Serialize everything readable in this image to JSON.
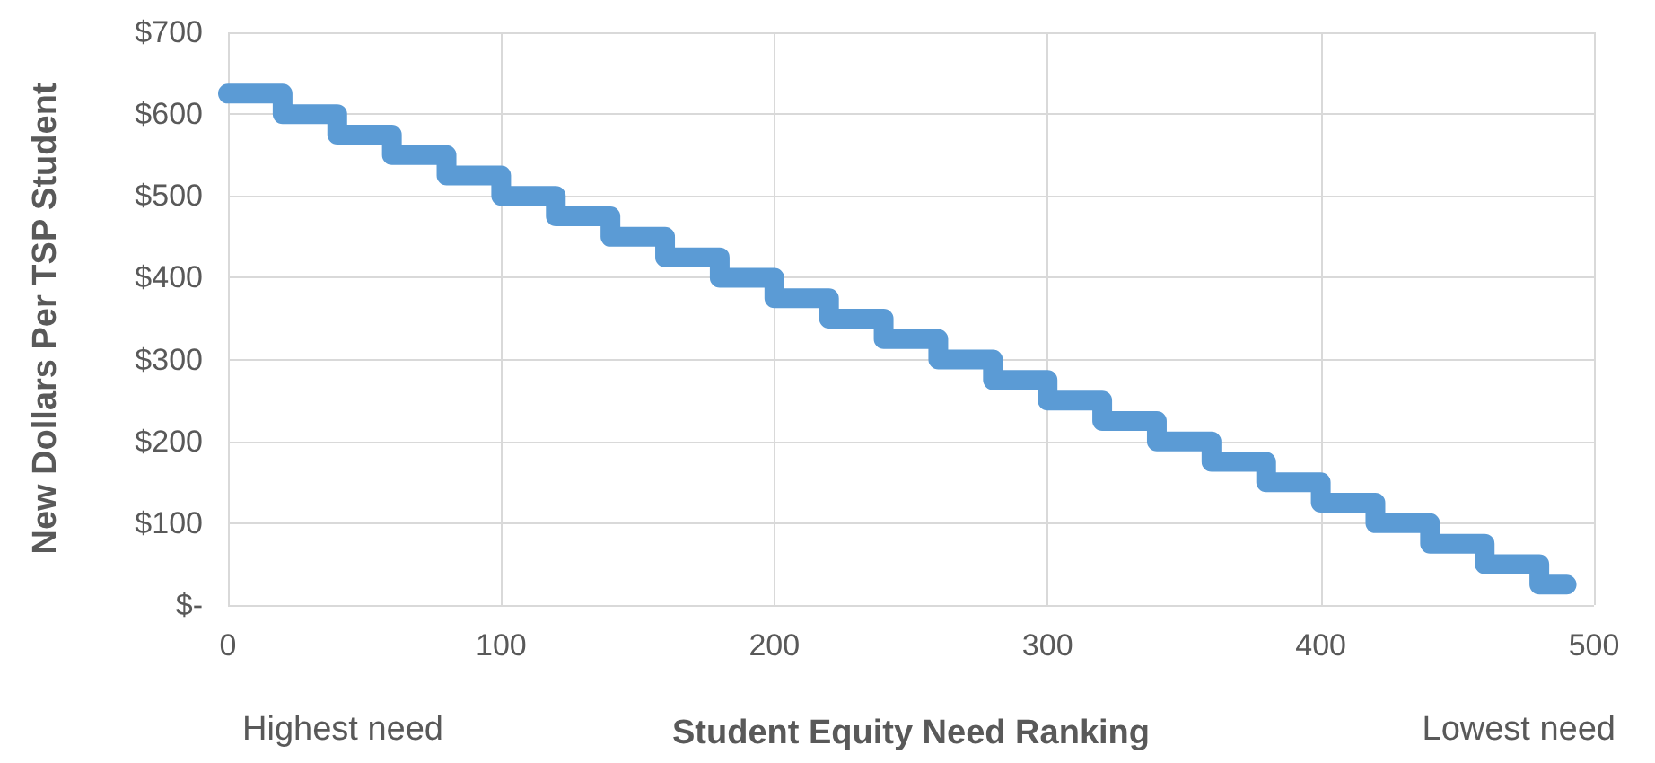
{
  "chart_data": {
    "type": "step",
    "xlabel": "Student Equity Need Ranking",
    "ylabel": "New Dollars Per TSP Student",
    "annotations": [
      "Highest need",
      "Lowest need"
    ],
    "series": [
      {
        "color": "#5b9bd5",
        "x": [
          0,
          20,
          40,
          60,
          80,
          100,
          120,
          140,
          160,
          180,
          200,
          220,
          240,
          260,
          280,
          300,
          320,
          340,
          360,
          380,
          400,
          420,
          440,
          460,
          480,
          490
        ],
        "values": [
          625,
          600,
          575,
          550,
          525,
          500,
          475,
          450,
          425,
          400,
          375,
          350,
          325,
          300,
          275,
          250,
          225,
          200,
          175,
          150,
          125,
          100,
          75,
          50,
          25,
          25
        ]
      }
    ],
    "xlim": [
      0,
      500
    ],
    "xticks": [
      0,
      100,
      200,
      300,
      400,
      500
    ],
    "ylim": [
      0,
      700
    ],
    "yticks": [
      {
        "value": 0,
        "label": "$-"
      },
      {
        "value": 100,
        "label": "$100"
      },
      {
        "value": 200,
        "label": "$200"
      },
      {
        "value": 300,
        "label": "$300"
      },
      {
        "value": 400,
        "label": "$400"
      },
      {
        "value": 500,
        "label": "$500"
      },
      {
        "value": 600,
        "label": "$600"
      },
      {
        "value": 700,
        "label": "$700"
      }
    ],
    "grid": true,
    "line_style": "solid"
  }
}
